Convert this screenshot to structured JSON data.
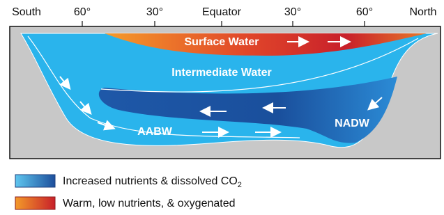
{
  "latitudes": [
    "South",
    "60°",
    "30°",
    "Equator",
    "30°",
    "60°",
    "North"
  ],
  "regions": {
    "surface": "Surface Water",
    "intermediate": "Intermediate Water",
    "nadw": "NADW",
    "aabw": "AABW"
  },
  "legend": [
    {
      "label": "Increased nutrients & dissolved CO",
      "subscript": "2"
    },
    {
      "label": "Warm, low nutrients, & oxygenated"
    }
  ]
}
